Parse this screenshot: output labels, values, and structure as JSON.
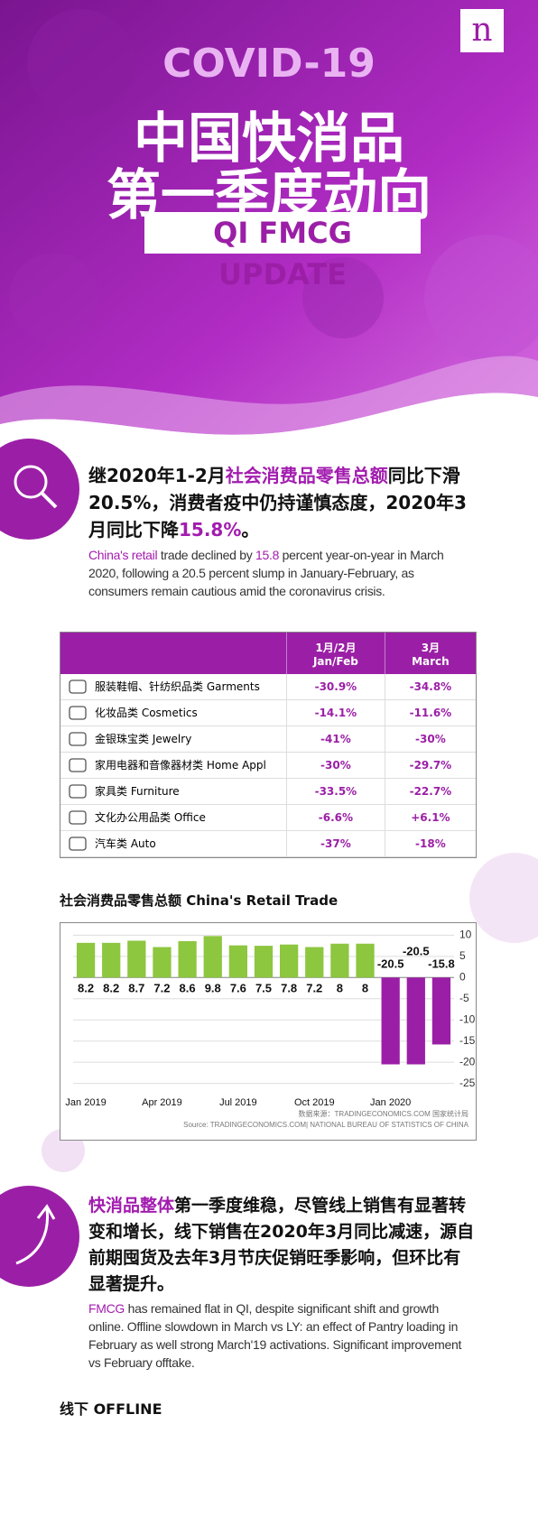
{
  "header": {
    "logo": "n",
    "kicker": "COVID-19",
    "title_line1": "中国快消品",
    "title_line2": "第一季度动向",
    "badge": "QI FMCG UPDATE"
  },
  "intro": {
    "zh": [
      {
        "text": "继2020年1-2月",
        "highlight": false
      },
      {
        "text": "社会消费品零售总额",
        "highlight": true
      },
      {
        "text": "同比下滑20.5%，消费者疫中仍持谨慎态度，2020年3月同比下降",
        "highlight": false
      },
      {
        "text": "15.8%",
        "highlight": true
      },
      {
        "text": "。",
        "highlight": false
      }
    ],
    "en": [
      {
        "text": "China's retail",
        "highlight": true
      },
      {
        "text": " trade declined by ",
        "highlight": false
      },
      {
        "text": "15.8",
        "highlight": true
      },
      {
        "text": " percent year-on-year in March 2020, following a 20.5 percent slump in January-February, as consumers remain cautious amid the coronavirus crisis.",
        "highlight": false
      }
    ]
  },
  "table": {
    "header": {
      "jan_feb_zh": "1月/2月",
      "jan_feb_en": "Jan/Feb",
      "march_zh": "3月",
      "march_en": "March"
    },
    "rows": [
      {
        "label": "服装鞋帽、针纺织品类 Garments",
        "jan_feb": "-30.9%",
        "march": "-34.8%"
      },
      {
        "label": "化妆品类 Cosmetics",
        "jan_feb": "-14.1%",
        "march": "-11.6%"
      },
      {
        "label": "金银珠宝类 Jewelry",
        "jan_feb": "-41%",
        "march": "-30%"
      },
      {
        "label": "家用电器和音像器材类 Home Appl",
        "jan_feb": "-30%",
        "march": "-29.7%"
      },
      {
        "label": "家具类 Furniture",
        "jan_feb": "-33.5%",
        "march": "-22.7%"
      },
      {
        "label": "文化办公用品类 Office",
        "jan_feb": "-6.6%",
        "march": "+6.1%"
      },
      {
        "label": "汽车类 Auto",
        "jan_feb": "-37%",
        "march": "-18%"
      }
    ]
  },
  "chart_data": {
    "type": "bar",
    "title": "社会消费品零售总额 China's Retail Trade",
    "categories": [
      "Jan 2019",
      null,
      null,
      "Apr 2019",
      null,
      null,
      "Jul 2019",
      null,
      null,
      "Oct 2019",
      null,
      null,
      "Jan 2020",
      null,
      null
    ],
    "values": [
      8.2,
      8.2,
      8.7,
      7.2,
      8.6,
      9.8,
      7.6,
      7.5,
      7.8,
      7.2,
      8,
      8,
      -20.5,
      -20.5,
      -15.8
    ],
    "color": "#8dc63f",
    "negative_color": "#9b1fa6",
    "ylim": [
      -27,
      12
    ],
    "yticks": [
      10,
      5,
      0,
      -5,
      -10,
      -15,
      -20,
      -25
    ],
    "grid": true,
    "source_zh": "数据来源：TRADINGECONOMICS.COM 国家统计局",
    "source_en": "Source: TRADINGECONOMICS.COM| NATIONAL BUREAU OF STATISTICS OF CHINA"
  },
  "summary": {
    "zh": [
      {
        "text": "快消品整体",
        "highlight": true
      },
      {
        "text": "第一季度维稳，尽管线上销售有显著转变和增长，线下销售在2020年3月同比减速，源自前期囤货及去年3月节庆促销旺季影响，但环比有显著提升。",
        "highlight": false
      }
    ],
    "en": [
      {
        "text": "FMCG",
        "highlight": true
      },
      {
        "text": " has remained flat in QI, despite significant shift and growth online. Offline slowdown in March vs LY: an effect of Pantry loading in February as well strong March'19 activations. Significant improvement vs February offtake.",
        "highlight": false
      }
    ]
  },
  "footer": {
    "heading": "线下 OFFLINE"
  }
}
